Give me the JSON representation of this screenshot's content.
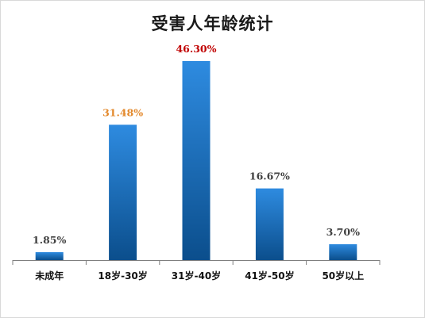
{
  "colors": {
    "bar_top": "#2e8be0",
    "bar_bottom": "#0b4e8c",
    "axis": "#7f7f7f",
    "label_default": "#404040",
    "label_orange": "#e3892c",
    "label_red": "#c00000"
  },
  "chart_data": {
    "type": "bar",
    "title": "受害人年龄统计",
    "categories": [
      "未成年",
      "18岁-30岁",
      "31岁-40岁",
      "41岁-50岁",
      "50岁以上"
    ],
    "values": [
      1.85,
      31.48,
      46.3,
      16.67,
      3.7
    ],
    "data_labels": [
      "1.85%",
      "31.48%",
      "46.30%",
      "16.67%",
      "3.70%"
    ],
    "label_colors": [
      "#404040",
      "#e3892c",
      "#c00000",
      "#404040",
      "#404040"
    ],
    "ylim": [
      0,
      46.3
    ],
    "grid": false,
    "legend": "none"
  }
}
